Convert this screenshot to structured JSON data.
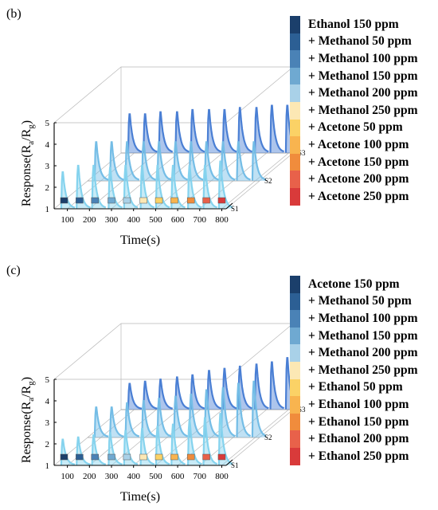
{
  "chart_data": [
    {
      "type": "line",
      "panel_label": "(b)",
      "xlabel": "Time(s)",
      "ylabel": "Response(Ra/Rg)",
      "ylabel_parts": {
        "base": "Response(R",
        "sub1": "a",
        "mid": "/R",
        "sub2": "g",
        "end": ")"
      },
      "x_ticks": [
        100,
        200,
        300,
        400,
        500,
        600,
        700,
        800
      ],
      "y_ticks": [
        1,
        2,
        3,
        4,
        5
      ],
      "xlim": [
        40,
        820
      ],
      "ylim": [
        1,
        5
      ],
      "sensors": [
        "S1",
        "S2",
        "S3"
      ],
      "legend": [
        {
          "label": "Ethanol 150 ppm",
          "color": "#1b3f6b"
        },
        {
          "label": "+ Methanol 50 ppm",
          "color": "#2c5f94"
        },
        {
          "label": "+ Methanol 100 ppm",
          "color": "#4a82b6"
        },
        {
          "label": "+ Methanol 150 ppm",
          "color": "#6fa9d1"
        },
        {
          "label": "+ Methanol 200 ppm",
          "color": "#a9d1e8"
        },
        {
          "label": "+ Methanol 250 ppm",
          "color": "#fce8b4"
        },
        {
          "label": "+ Acetone 50 ppm",
          "color": "#fbd266"
        },
        {
          "label": "+ Acetone 100 ppm",
          "color": "#f8b44f"
        },
        {
          "label": "+ Acetone 150 ppm",
          "color": "#f08c3c"
        },
        {
          "label": "+ Acetone 200 ppm",
          "color": "#e8614a"
        },
        {
          "label": "+ Acetone 250 ppm",
          "color": "#d93a3a"
        }
      ],
      "series": [
        {
          "name": "S1",
          "color": "#85d3ee",
          "peak_times": [
            80,
            150,
            220,
            295,
            365,
            440,
            510,
            580,
            655,
            725,
            795
          ],
          "peaks": [
            2.7,
            3.0,
            3.0,
            2.9,
            3.0,
            3.0,
            3.0,
            3.0,
            3.0,
            3.0,
            3.2
          ]
        },
        {
          "name": "S2",
          "color": "#74bde6",
          "peak_times": [
            80,
            150,
            220,
            295,
            365,
            440,
            510,
            580,
            655,
            725,
            795
          ],
          "peaks": [
            2.8,
            2.8,
            2.8,
            2.8,
            2.8,
            2.8,
            2.8,
            2.8,
            2.8,
            2.8,
            2.8
          ]
        },
        {
          "name": "S3",
          "color": "#4a7fd4",
          "peak_times": [
            80,
            150,
            220,
            295,
            365,
            440,
            510,
            580,
            655,
            725,
            795
          ],
          "peaks": [
            2.8,
            2.8,
            2.9,
            2.9,
            3.0,
            3.0,
            3.0,
            3.1,
            3.1,
            3.2,
            3.2
          ]
        }
      ]
    },
    {
      "type": "line",
      "panel_label": "(c)",
      "xlabel": "Time(s)",
      "ylabel": "Response(Ra/Rg)",
      "ylabel_parts": {
        "base": "Response(R",
        "sub1": "a",
        "mid": "/R",
        "sub2": "g",
        "end": ")"
      },
      "x_ticks": [
        100,
        200,
        300,
        400,
        500,
        600,
        700,
        800
      ],
      "y_ticks": [
        1,
        2,
        3,
        4,
        5
      ],
      "xlim": [
        40,
        820
      ],
      "ylim": [
        1,
        5
      ],
      "sensors": [
        "S1",
        "S2",
        "S3"
      ],
      "legend": [
        {
          "label": "Acetone 150 ppm",
          "color": "#1b3f6b"
        },
        {
          "label": "+ Methanol 50 ppm",
          "color": "#2c5f94"
        },
        {
          "label": "+ Methanol 100 ppm",
          "color": "#4a82b6"
        },
        {
          "label": "+ Methanol 150 ppm",
          "color": "#6fa9d1"
        },
        {
          "label": "+ Methanol 200 ppm",
          "color": "#a9d1e8"
        },
        {
          "label": "+ Methanol 250 ppm",
          "color": "#fce8b4"
        },
        {
          "label": "+ Ethanol 50 ppm",
          "color": "#fbd266"
        },
        {
          "label": "+ Ethanol 100 ppm",
          "color": "#f8b44f"
        },
        {
          "label": "+ Ethanol 150 ppm",
          "color": "#f08c3c"
        },
        {
          "label": "+ Ethanol 200 ppm",
          "color": "#e8614a"
        },
        {
          "label": "+ Ethanol 250 ppm",
          "color": "#d93a3a"
        }
      ],
      "series": [
        {
          "name": "S1",
          "color": "#85d3ee",
          "peak_times": [
            80,
            150,
            220,
            295,
            365,
            440,
            510,
            580,
            655,
            725,
            795
          ],
          "peaks": [
            2.2,
            2.3,
            2.4,
            2.5,
            2.6,
            2.7,
            2.8,
            2.9,
            3.1,
            3.2,
            3.4
          ]
        },
        {
          "name": "S2",
          "color": "#74bde6",
          "peak_times": [
            80,
            150,
            220,
            295,
            365,
            440,
            510,
            580,
            655,
            725,
            795
          ],
          "peaks": [
            2.4,
            2.4,
            2.6,
            2.7,
            2.8,
            2.9,
            3.0,
            3.2,
            3.3,
            3.5,
            3.6
          ]
        },
        {
          "name": "S3",
          "color": "#4a7fd4",
          "peak_times": [
            80,
            150,
            220,
            295,
            365,
            440,
            510,
            580,
            655,
            725,
            795
          ],
          "peaks": [
            2.2,
            2.3,
            2.4,
            2.5,
            2.6,
            2.8,
            2.9,
            3.0,
            3.1,
            3.2,
            3.4
          ]
        }
      ]
    }
  ]
}
